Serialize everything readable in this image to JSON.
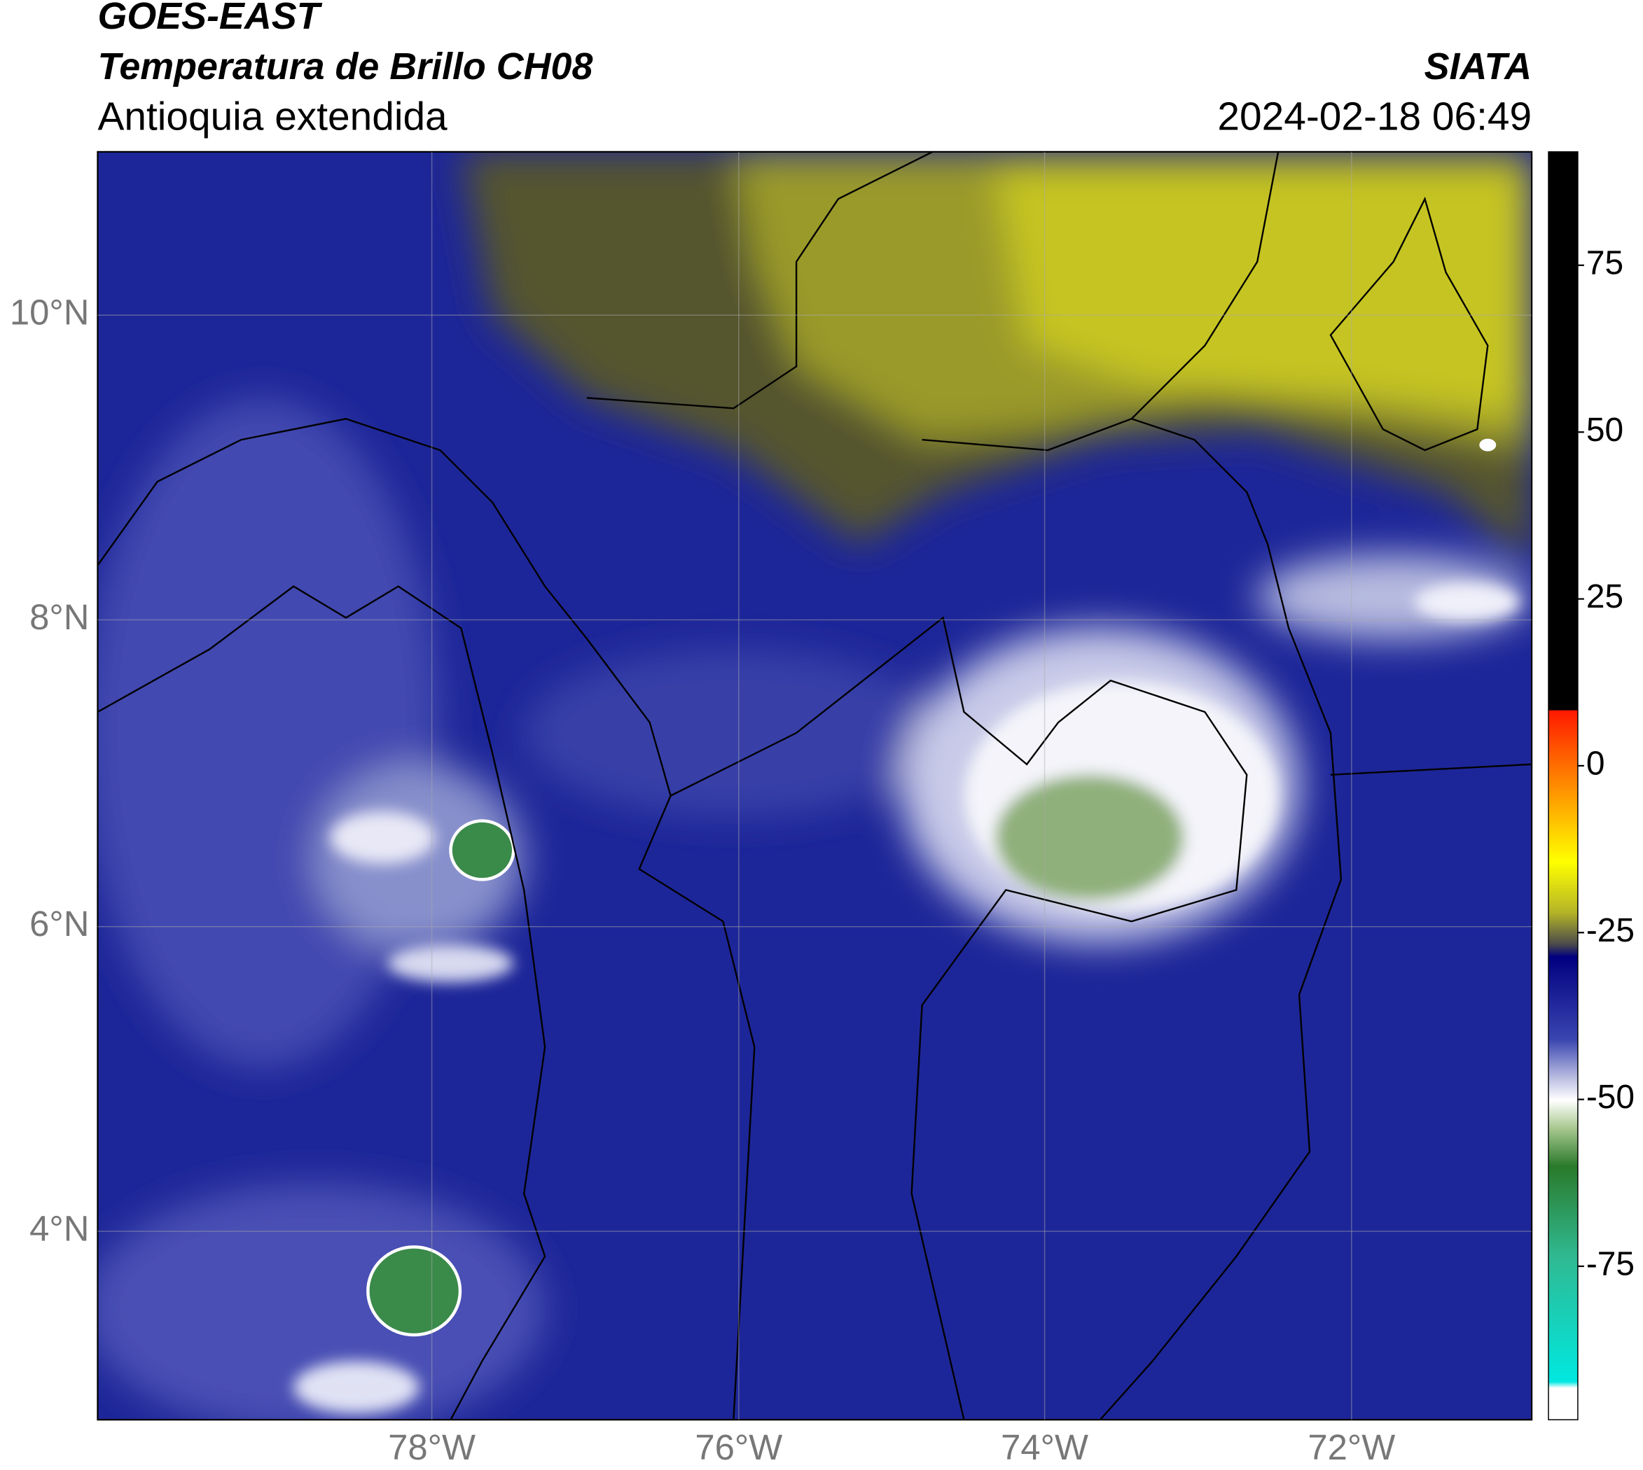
{
  "header": {
    "title": "GOES-EAST",
    "subtitle": "Temperatura de Brillo CH08",
    "region": "Antioquia extendida",
    "organization": "SIATA",
    "datetime": "2024-02-18 06:49"
  },
  "map": {
    "lat_labels": [
      "10°N",
      "8°N",
      "6°N",
      "4°N"
    ],
    "lon_labels": [
      "78°W",
      "76°W",
      "74°W",
      "72°W"
    ]
  },
  "colorbar": {
    "lim": [
      -98,
      92
    ],
    "ticks": [
      75,
      50,
      25,
      0,
      -25,
      -50,
      -75
    ]
  }
}
